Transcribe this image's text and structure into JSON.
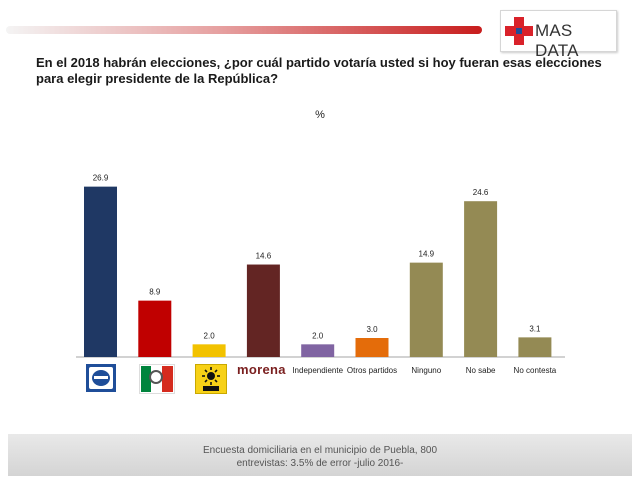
{
  "header": {
    "brand": "MAS DATA",
    "brand_icon": "red-cross-icon"
  },
  "question": "En el 2018 habrán elecciones, ¿por cuál partido votaría usted si hoy fueran esas elecciones para elegir presidente de la República?",
  "chart_data": {
    "type": "bar",
    "unit_label": "%",
    "categories": [
      "PAN",
      "PRI",
      "PRD",
      "morena",
      "Independiente",
      "Otros partidos",
      "Ninguno",
      "No sabe",
      "No contesta"
    ],
    "values": [
      26.9,
      8.9,
      2.0,
      14.6,
      2.0,
      3.0,
      14.9,
      24.6,
      3.1
    ],
    "value_labels": [
      "26.9",
      "8.9",
      "2.0",
      "14.6",
      "2.0",
      "3.0",
      "14.9",
      "24.6",
      "3.1"
    ],
    "colors": [
      "#1f3864",
      "#c00000",
      "#f2c200",
      "#632523",
      "#8064a2",
      "#e46c0a",
      "#948a54",
      "#948a54",
      "#948a54"
    ],
    "category_display": [
      "logo",
      "logo",
      "logo",
      "logo",
      "text",
      "text",
      "text",
      "text",
      "text"
    ],
    "ylim": [
      0,
      30
    ],
    "grid": false,
    "legend": "none"
  },
  "footer": {
    "line1": "Encuesta domiciliaria en el municipio de Puebla, 800",
    "line2": "entrevistas: 3.5% de error -julio 2016-"
  }
}
